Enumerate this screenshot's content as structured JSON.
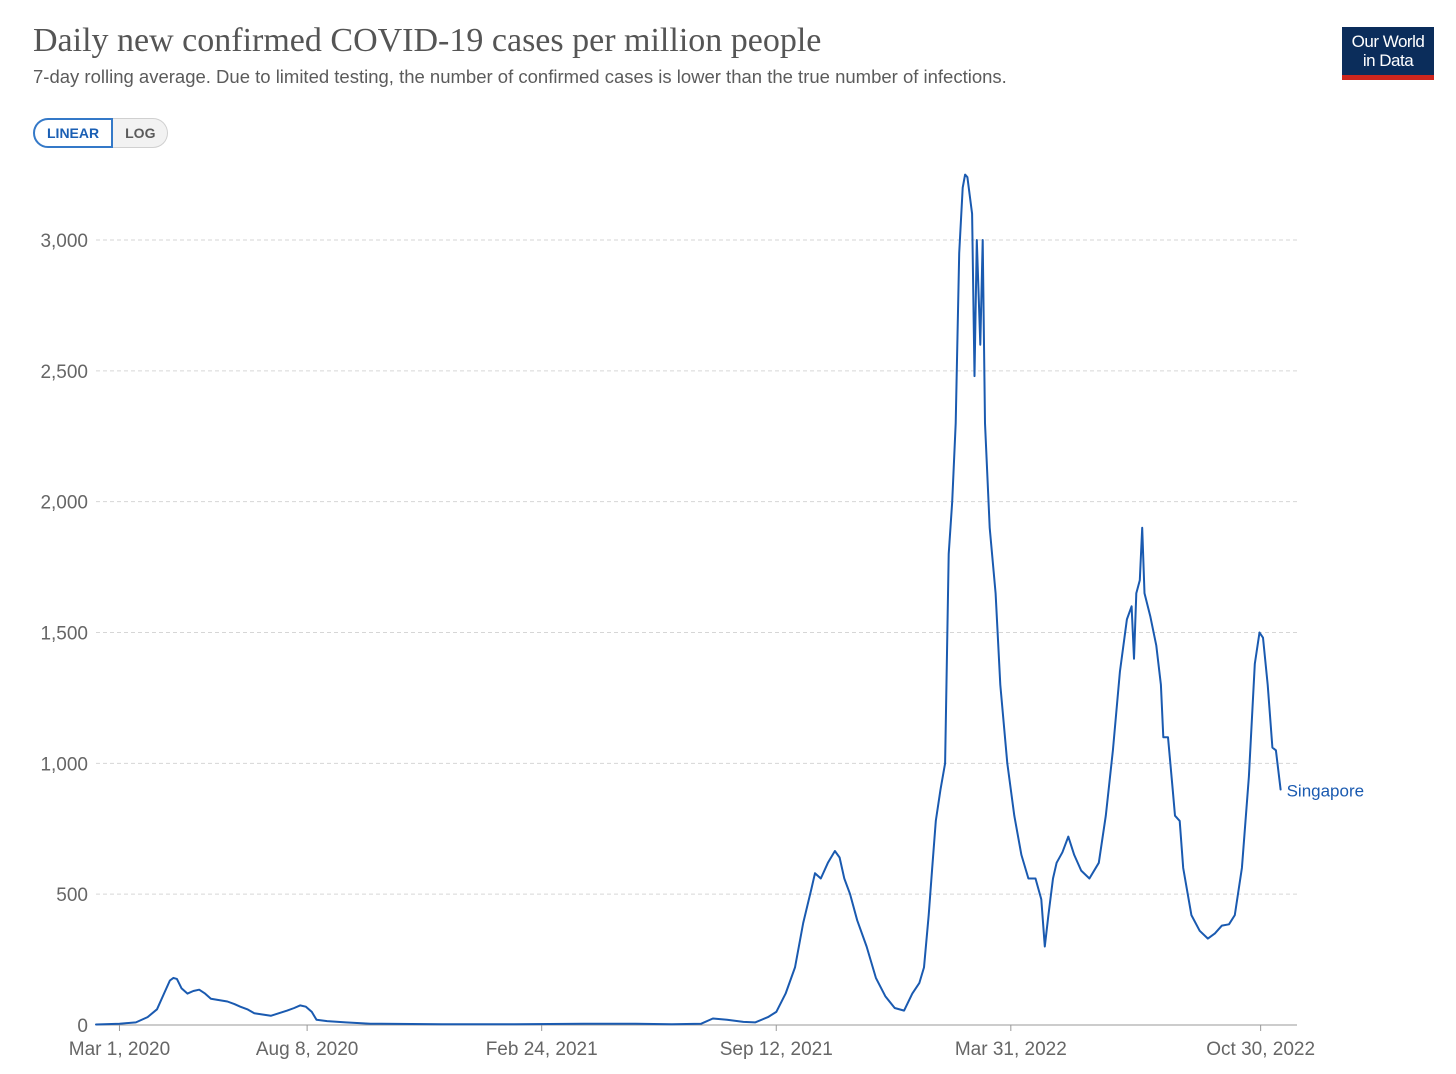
{
  "header": {
    "title": "Daily new confirmed COVID-19 cases per million people",
    "subtitle": "7-day rolling average. Due to limited testing, the number of confirmed cases is lower than the true number of infections.",
    "logo_line1": "Our World",
    "logo_line2": "in Data"
  },
  "controls": {
    "linear_label": "LINEAR",
    "log_label": "LOG",
    "active": "linear"
  },
  "colors": {
    "series": "#1a5ab0",
    "grid": "#d6d6d6",
    "axis": "#999999",
    "logo_bg": "#0b2d5b",
    "logo_accent": "#ce261e"
  },
  "chart_data": {
    "type": "line",
    "title": "Daily new confirmed COVID-19 cases per million people",
    "subtitle": "7-day rolling average. Due to limited testing, the number of confirmed cases is lower than the true number of infections.",
    "xlabel": "",
    "ylabel": "",
    "x_range": [
      "2020-02-10",
      "2022-11-30"
    ],
    "ylim": [
      0,
      3250
    ],
    "grid": "horizontal dashed",
    "y_ticks": [
      0,
      500,
      1000,
      1500,
      2000,
      2500,
      3000
    ],
    "y_tick_labels": [
      "0",
      "500",
      "1,000",
      "1,500",
      "2,000",
      "2,500",
      "3,000"
    ],
    "x_ticks": [
      "2020-03-01",
      "2020-08-08",
      "2021-02-24",
      "2021-09-12",
      "2022-03-31",
      "2022-10-30"
    ],
    "x_tick_labels": [
      "Mar 1, 2020",
      "Aug 8, 2020",
      "Feb 24, 2021",
      "Sep 12, 2021",
      "Mar 31, 2022",
      "Oct 30, 2022"
    ],
    "series": [
      {
        "name": "Singapore",
        "points": [
          [
            "2020-02-10",
            2
          ],
          [
            "2020-03-01",
            5
          ],
          [
            "2020-03-15",
            10
          ],
          [
            "2020-03-25",
            30
          ],
          [
            "2020-04-02",
            60
          ],
          [
            "2020-04-08",
            120
          ],
          [
            "2020-04-13",
            170
          ],
          [
            "2020-04-16",
            180
          ],
          [
            "2020-04-19",
            176
          ],
          [
            "2020-04-23",
            140
          ],
          [
            "2020-04-28",
            120
          ],
          [
            "2020-05-03",
            130
          ],
          [
            "2020-05-08",
            135
          ],
          [
            "2020-05-13",
            120
          ],
          [
            "2020-05-18",
            100
          ],
          [
            "2020-05-25",
            95
          ],
          [
            "2020-06-01",
            90
          ],
          [
            "2020-06-07",
            80
          ],
          [
            "2020-06-12",
            70
          ],
          [
            "2020-06-18",
            60
          ],
          [
            "2020-06-24",
            45
          ],
          [
            "2020-07-01",
            40
          ],
          [
            "2020-07-08",
            35
          ],
          [
            "2020-07-15",
            45
          ],
          [
            "2020-07-22",
            55
          ],
          [
            "2020-07-28",
            65
          ],
          [
            "2020-08-02",
            75
          ],
          [
            "2020-08-07",
            70
          ],
          [
            "2020-08-12",
            50
          ],
          [
            "2020-08-16",
            20
          ],
          [
            "2020-08-25",
            15
          ],
          [
            "2020-09-10",
            10
          ],
          [
            "2020-10-01",
            5
          ],
          [
            "2020-12-01",
            3
          ],
          [
            "2021-02-01",
            3
          ],
          [
            "2021-04-01",
            5
          ],
          [
            "2021-05-15",
            5
          ],
          [
            "2021-06-15",
            3
          ],
          [
            "2021-07-10",
            5
          ],
          [
            "2021-07-20",
            25
          ],
          [
            "2021-08-01",
            20
          ],
          [
            "2021-08-15",
            12
          ],
          [
            "2021-08-25",
            10
          ],
          [
            "2021-09-05",
            30
          ],
          [
            "2021-09-12",
            50
          ],
          [
            "2021-09-20",
            120
          ],
          [
            "2021-09-28",
            220
          ],
          [
            "2021-10-05",
            390
          ],
          [
            "2021-10-12",
            520
          ],
          [
            "2021-10-15",
            580
          ],
          [
            "2021-10-20",
            560
          ],
          [
            "2021-10-26",
            620
          ],
          [
            "2021-11-01",
            665
          ],
          [
            "2021-11-05",
            640
          ],
          [
            "2021-11-09",
            560
          ],
          [
            "2021-11-14",
            500
          ],
          [
            "2021-11-20",
            400
          ],
          [
            "2021-11-28",
            300
          ],
          [
            "2021-12-06",
            180
          ],
          [
            "2021-12-14",
            110
          ],
          [
            "2021-12-22",
            65
          ],
          [
            "2021-12-30",
            55
          ],
          [
            "2022-01-06",
            120
          ],
          [
            "2022-01-12",
            160
          ],
          [
            "2022-01-16",
            220
          ],
          [
            "2022-01-20",
            420
          ],
          [
            "2022-01-23",
            600
          ],
          [
            "2022-01-26",
            780
          ],
          [
            "2022-01-30",
            900
          ],
          [
            "2022-02-03",
            1000
          ],
          [
            "2022-02-06",
            1800
          ],
          [
            "2022-02-09",
            2000
          ],
          [
            "2022-02-12",
            2300
          ],
          [
            "2022-02-15",
            2950
          ],
          [
            "2022-02-18",
            3200
          ],
          [
            "2022-02-20",
            3250
          ],
          [
            "2022-02-22",
            3240
          ],
          [
            "2022-02-26",
            3100
          ],
          [
            "2022-02-28",
            2480
          ],
          [
            "2022-03-02",
            3000
          ],
          [
            "2022-03-05",
            2600
          ],
          [
            "2022-03-07",
            3000
          ],
          [
            "2022-03-09",
            2300
          ],
          [
            "2022-03-13",
            1900
          ],
          [
            "2022-03-18",
            1650
          ],
          [
            "2022-03-22",
            1300
          ],
          [
            "2022-03-28",
            1000
          ],
          [
            "2022-04-03",
            800
          ],
          [
            "2022-04-09",
            650
          ],
          [
            "2022-04-15",
            560
          ],
          [
            "2022-04-21",
            560
          ],
          [
            "2022-04-26",
            480
          ],
          [
            "2022-04-29",
            300
          ],
          [
            "2022-05-02",
            420
          ],
          [
            "2022-05-06",
            560
          ],
          [
            "2022-05-09",
            620
          ],
          [
            "2022-05-14",
            660
          ],
          [
            "2022-05-19",
            720
          ],
          [
            "2022-05-24",
            650
          ],
          [
            "2022-05-30",
            590
          ],
          [
            "2022-06-06",
            560
          ],
          [
            "2022-06-14",
            620
          ],
          [
            "2022-06-20",
            800
          ],
          [
            "2022-06-26",
            1050
          ],
          [
            "2022-07-02",
            1350
          ],
          [
            "2022-07-08",
            1550
          ],
          [
            "2022-07-12",
            1600
          ],
          [
            "2022-07-14",
            1400
          ],
          [
            "2022-07-16",
            1650
          ],
          [
            "2022-07-19",
            1700
          ],
          [
            "2022-07-21",
            1900
          ],
          [
            "2022-07-23",
            1650
          ],
          [
            "2022-07-28",
            1560
          ],
          [
            "2022-08-02",
            1450
          ],
          [
            "2022-08-06",
            1300
          ],
          [
            "2022-08-08",
            1100
          ],
          [
            "2022-08-12",
            1100
          ],
          [
            "2022-08-16",
            900
          ],
          [
            "2022-08-18",
            800
          ],
          [
            "2022-08-22",
            780
          ],
          [
            "2022-08-25",
            600
          ],
          [
            "2022-09-01",
            420
          ],
          [
            "2022-09-08",
            360
          ],
          [
            "2022-09-15",
            330
          ],
          [
            "2022-09-21",
            350
          ],
          [
            "2022-09-27",
            380
          ],
          [
            "2022-10-03",
            385
          ],
          [
            "2022-10-08",
            420
          ],
          [
            "2022-10-14",
            600
          ],
          [
            "2022-10-20",
            950
          ],
          [
            "2022-10-25",
            1380
          ],
          [
            "2022-10-29",
            1500
          ],
          [
            "2022-11-01",
            1480
          ],
          [
            "2022-11-05",
            1300
          ],
          [
            "2022-11-09",
            1060
          ],
          [
            "2022-11-12",
            1050
          ],
          [
            "2022-11-16",
            900
          ]
        ]
      }
    ]
  }
}
